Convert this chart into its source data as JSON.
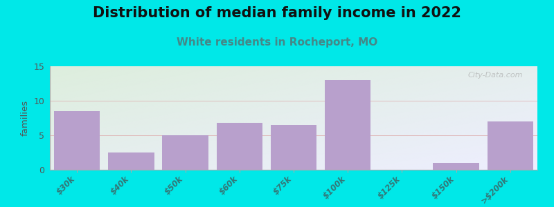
{
  "title": "Distribution of median family income in 2022",
  "subtitle": "White residents in Rocheport, MO",
  "ylabel": "families",
  "categories": [
    "$30k",
    "$40k",
    "$50k",
    "$60k",
    "$75k",
    "$100k",
    "$125k",
    "$150k",
    ">$200k"
  ],
  "values": [
    8.5,
    2.5,
    5.0,
    6.8,
    6.5,
    13.0,
    0,
    1.0,
    7.0
  ],
  "bar_color": "#b8a0cc",
  "bg_outer": "#00e8e8",
  "bg_plot_topleft": "#ddeedd",
  "bg_plot_bottomright": "#eeeeff",
  "ylim": [
    0,
    15
  ],
  "yticks": [
    0,
    5,
    10,
    15
  ],
  "title_fontsize": 15,
  "subtitle_fontsize": 11,
  "title_color": "#111111",
  "subtitle_color": "#448888",
  "tick_label_color": "#337777",
  "ylabel_color": "#555555",
  "ytick_color": "#555555",
  "watermark": "City-Data.com",
  "figsize": [
    8.0,
    3.0
  ],
  "dpi": 100
}
